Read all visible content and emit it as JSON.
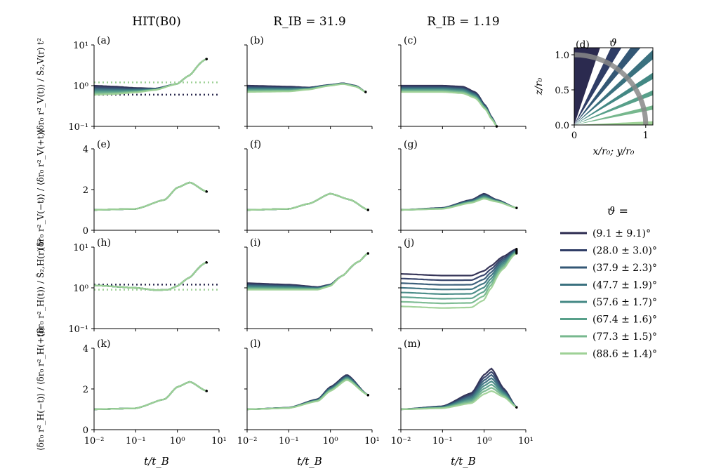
{
  "column_titles": [
    "HIT(B0)",
    "R_IB = 31.9",
    "R_IB = 1.19"
  ],
  "row_ylabels": [
    "⟨δr₀ r²_V(t)⟩ / S̃₂,V(r) t²",
    "⟨δr₀ r²_V(−t)⟩ / ⟨δr₀ r²_V(+t)⟩",
    "⟨δr₀ r²_H(t)⟩ / S̃₂,H(r) t²",
    "⟨δr₀ r²_H(−t)⟩ / ⟨δr₀ r²_H(+t)⟩"
  ],
  "xlabel": "t/t_B",
  "x_ticks": [
    "10⁻²",
    "10⁻¹",
    "10⁰",
    "10¹"
  ],
  "log_y_ticks": [
    "10¹",
    "10⁰",
    "10⁻¹"
  ],
  "lin_y_ticks": [
    "4",
    "2",
    "0"
  ],
  "panel_labels": [
    "(a)",
    "(b)",
    "(c)",
    "(e)",
    "(f)",
    "(g)",
    "(h)",
    "(i)",
    "(j)",
    "(k)",
    "(l)",
    "(m)"
  ],
  "inset": {
    "label": "(d)",
    "theta_symbol": "ϑ",
    "xlabel": "x/r₀; y/r₀",
    "ylabel": "z/r₀",
    "x_ticks": [
      "0",
      "1"
    ],
    "y_ticks": [
      "1.0",
      "0.5",
      "0.0"
    ]
  },
  "legend": {
    "title": "ϑ =",
    "entries": [
      "(9.1 ± 9.1)°",
      "(28.0 ± 3.0)°",
      "(37.9 ± 2.3)°",
      "(47.7 ± 1.9)°",
      "(57.6 ± 1.7)°",
      "(67.4 ± 1.6)°",
      "(77.3 ± 1.5)°",
      "(88.6 ± 1.4)°"
    ],
    "colors": [
      "#2b2a4f",
      "#2f3d66",
      "#335775",
      "#3a717f",
      "#438884",
      "#58a08a",
      "#77b88e",
      "#9ed196"
    ]
  },
  "chart_data": [
    {
      "panel": "(a)",
      "type": "line",
      "x_scale": "log",
      "y_scale": "log",
      "xlim": [
        0.01,
        10
      ],
      "ylim": [
        0.1,
        10
      ],
      "reference_lines": [
        {
          "y": 0.6,
          "color": "#2b2a4f",
          "style": "dotted"
        },
        {
          "y": 1.2,
          "color": "#9ed196",
          "style": "dotted"
        }
      ],
      "series_note": "8 curves, one per theta bin",
      "x": [
        0.01,
        0.03,
        0.1,
        0.3,
        1,
        2,
        5
      ],
      "series": [
        {
          "values": [
            1.0,
            0.95,
            0.88,
            0.85,
            1.1,
            1.8,
            4.5
          ]
        },
        {
          "values": [
            0.6,
            0.62,
            0.68,
            0.78,
            1.1,
            1.8,
            4.5
          ]
        }
      ]
    },
    {
      "panel": "(b)",
      "type": "line",
      "x_scale": "log",
      "y_scale": "log",
      "xlim": [
        0.01,
        10
      ],
      "ylim": [
        0.1,
        10
      ],
      "x": [
        0.01,
        0.1,
        0.3,
        1,
        2,
        4,
        7
      ],
      "series": [
        {
          "values": [
            1.0,
            0.95,
            0.9,
            1.05,
            1.15,
            1.0,
            0.7
          ]
        },
        {
          "values": [
            0.7,
            0.72,
            0.8,
            1.0,
            1.1,
            0.95,
            0.7
          ]
        }
      ]
    },
    {
      "panel": "(c)",
      "type": "line",
      "x_scale": "log",
      "y_scale": "log",
      "xlim": [
        0.01,
        10
      ],
      "ylim": [
        0.1,
        10
      ],
      "x": [
        0.01,
        0.1,
        0.3,
        0.6,
        1,
        1.5,
        2
      ],
      "series": [
        {
          "values": [
            1.0,
            1.0,
            0.95,
            0.7,
            0.35,
            0.17,
            0.1
          ]
        },
        {
          "values": [
            0.7,
            0.7,
            0.65,
            0.5,
            0.28,
            0.15,
            0.1
          ]
        }
      ]
    },
    {
      "panel": "(e)",
      "type": "line",
      "x_scale": "log",
      "y_scale": "linear",
      "xlim": [
        0.01,
        10
      ],
      "ylim": [
        0,
        4
      ],
      "x": [
        0.01,
        0.1,
        0.5,
        1,
        2,
        5
      ],
      "series": [
        {
          "values": [
            1.0,
            1.05,
            1.5,
            2.1,
            2.35,
            1.9
          ]
        }
      ]
    },
    {
      "panel": "(f)",
      "type": "line",
      "x_scale": "log",
      "y_scale": "linear",
      "xlim": [
        0.01,
        10
      ],
      "ylim": [
        0,
        4
      ],
      "x": [
        0.01,
        0.1,
        0.3,
        1,
        3,
        8
      ],
      "series": [
        {
          "values": [
            1.0,
            1.05,
            1.3,
            1.8,
            1.5,
            1.0
          ]
        }
      ]
    },
    {
      "panel": "(g)",
      "type": "line",
      "x_scale": "log",
      "y_scale": "linear",
      "xlim": [
        0.01,
        10
      ],
      "ylim": [
        0,
        4
      ],
      "x": [
        0.01,
        0.1,
        0.5,
        1,
        2,
        6
      ],
      "series": [
        {
          "values": [
            1.0,
            1.1,
            1.5,
            1.8,
            1.5,
            1.1
          ]
        },
        {
          "values": [
            1.0,
            1.05,
            1.35,
            1.55,
            1.4,
            1.1
          ]
        }
      ]
    },
    {
      "panel": "(h)",
      "type": "line",
      "x_scale": "log",
      "y_scale": "log",
      "xlim": [
        0.01,
        10
      ],
      "ylim": [
        0.1,
        10
      ],
      "reference_lines": [
        {
          "y": 1.2,
          "color": "#2b2a4f",
          "style": "dotted"
        },
        {
          "y": 0.9,
          "color": "#9ed196",
          "style": "dotted"
        }
      ],
      "x": [
        0.01,
        0.1,
        0.3,
        0.6,
        1,
        2,
        5
      ],
      "series": [
        {
          "values": [
            1.15,
            1.0,
            0.88,
            0.9,
            1.1,
            1.8,
            4.2
          ]
        }
      ]
    },
    {
      "panel": "(i)",
      "type": "line",
      "x_scale": "log",
      "y_scale": "log",
      "xlim": [
        0.01,
        10
      ],
      "ylim": [
        0.1,
        10
      ],
      "x": [
        0.01,
        0.1,
        0.5,
        1,
        2,
        5,
        8
      ],
      "series": [
        {
          "values": [
            1.3,
            1.2,
            1.05,
            1.2,
            2.0,
            4.5,
            7.0
          ]
        },
        {
          "values": [
            0.9,
            0.9,
            0.9,
            1.1,
            2.0,
            4.5,
            7.0
          ]
        }
      ]
    },
    {
      "panel": "(j)",
      "type": "line",
      "x_scale": "log",
      "y_scale": "log",
      "xlim": [
        0.01,
        10
      ],
      "ylim": [
        0.1,
        10
      ],
      "x": [
        0.01,
        0.1,
        0.5,
        1,
        1.5,
        3,
        6
      ],
      "series": [
        {
          "values": [
            2.2,
            2.0,
            2.0,
            2.6,
            3.5,
            6.0,
            9.0
          ]
        },
        {
          "values": [
            0.35,
            0.32,
            0.33,
            0.5,
            1.0,
            3.0,
            7.0
          ]
        }
      ]
    },
    {
      "panel": "(k)",
      "type": "line",
      "x_scale": "log",
      "y_scale": "linear",
      "xlim": [
        0.01,
        10
      ],
      "ylim": [
        0,
        4
      ],
      "x": [
        0.01,
        0.1,
        0.5,
        1,
        2,
        5
      ],
      "series": [
        {
          "values": [
            1.0,
            1.05,
            1.5,
            2.1,
            2.35,
            1.9
          ]
        }
      ]
    },
    {
      "panel": "(l)",
      "type": "line",
      "x_scale": "log",
      "y_scale": "linear",
      "xlim": [
        0.01,
        10
      ],
      "ylim": [
        0,
        4
      ],
      "x": [
        0.01,
        0.1,
        0.5,
        1,
        2.5,
        8
      ],
      "series": [
        {
          "values": [
            1.0,
            1.08,
            1.5,
            2.1,
            2.7,
            1.7
          ]
        },
        {
          "values": [
            1.0,
            1.06,
            1.4,
            1.9,
            2.45,
            1.7
          ]
        }
      ]
    },
    {
      "panel": "(m)",
      "type": "line",
      "x_scale": "log",
      "y_scale": "linear",
      "xlim": [
        0.01,
        10
      ],
      "ylim": [
        0,
        4
      ],
      "x": [
        0.01,
        0.1,
        0.5,
        1,
        1.5,
        3,
        6
      ],
      "series": [
        {
          "values": [
            1.0,
            1.15,
            1.8,
            2.7,
            3.0,
            2.0,
            1.1
          ]
        },
        {
          "values": [
            1.0,
            1.05,
            1.3,
            1.75,
            1.9,
            1.6,
            1.1
          ]
        }
      ]
    }
  ]
}
